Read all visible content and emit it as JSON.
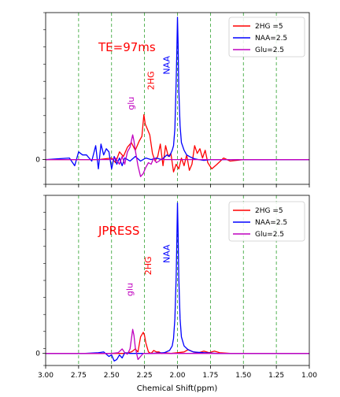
{
  "chart_data": [
    {
      "type": "line",
      "annotation": "TE=97ms",
      "annotation_color": "#ff0000",
      "xlim": [
        3.0,
        1.0
      ],
      "x_reversed": true,
      "ylim": [
        -1.6,
        9.5
      ],
      "yticks": [
        {
          "value": 0,
          "label": "0"
        }
      ],
      "show_xtick_labels": false,
      "vlines": [
        2.75,
        2.5,
        2.25,
        2.0,
        1.75,
        1.5,
        1.25
      ],
      "vline_color": "#2ca02c",
      "legend": {
        "position": "upper right"
      },
      "peak_labels": [
        {
          "text": "glu",
          "x": 2.33,
          "y": 3.2,
          "color": "#bf00bf"
        },
        {
          "text": "2HG",
          "x": 2.18,
          "y": 4.5,
          "color": "#ff0000"
        },
        {
          "text": "NAA",
          "x": 2.06,
          "y": 5.5,
          "color": "#0000ff"
        }
      ],
      "series": [
        {
          "name": "2HG =5",
          "color": "#ff0000",
          "x": [
            3.0,
            2.6,
            2.5,
            2.47,
            2.44,
            2.41,
            2.38,
            2.35,
            2.32,
            2.29,
            2.27,
            2.255,
            2.245,
            2.23,
            2.21,
            2.19,
            2.17,
            2.15,
            2.13,
            2.11,
            2.09,
            2.07,
            2.05,
            2.03,
            2.01,
            1.99,
            1.97,
            1.95,
            1.93,
            1.91,
            1.89,
            1.87,
            1.85,
            1.83,
            1.81,
            1.79,
            1.77,
            1.74,
            1.7,
            1.65,
            1.6,
            1.5,
            1.0
          ],
          "y": [
            0,
            0,
            0.1,
            -0.2,
            0.5,
            0.2,
            0.8,
            1.1,
            0.6,
            1.2,
            1.5,
            2.9,
            2.3,
            2.0,
            1.6,
            0.4,
            -0.1,
            0.2,
            1.0,
            -0.4,
            0.9,
            0.2,
            0.4,
            -0.8,
            -0.3,
            -0.6,
            0.1,
            -0.4,
            0.3,
            -0.7,
            -0.3,
            0.9,
            0.4,
            0.7,
            0.1,
            0.6,
            -0.2,
            -0.6,
            -0.3,
            0.1,
            -0.1,
            0,
            0
          ]
        },
        {
          "name": "NAA=2.5",
          "color": "#0000ff",
          "x": [
            3.0,
            2.82,
            2.78,
            2.75,
            2.72,
            2.69,
            2.65,
            2.62,
            2.6,
            2.58,
            2.56,
            2.54,
            2.52,
            2.5,
            2.48,
            2.46,
            2.44,
            2.42,
            2.4,
            2.36,
            2.32,
            2.28,
            2.24,
            2.2,
            2.16,
            2.12,
            2.08,
            2.06,
            2.04,
            2.03,
            2.02,
            2.01,
            2.005,
            2.0,
            1.995,
            1.99,
            1.98,
            1.97,
            1.95,
            1.93,
            1.9,
            1.87,
            1.84,
            1.8,
            1.75,
            1.7,
            1.6,
            1.5,
            1.0
          ],
          "y": [
            0,
            0.1,
            -0.4,
            0.5,
            0.3,
            0.3,
            -0.1,
            0.9,
            -0.6,
            1.0,
            0.3,
            0.7,
            0.5,
            -0.6,
            0.2,
            -0.3,
            0.1,
            -0.4,
            0.1,
            -0.1,
            0.2,
            -0.1,
            0.1,
            0,
            0.1,
            0,
            0.3,
            0.2,
            0.6,
            0.9,
            2.0,
            5.0,
            7.0,
            9.2,
            7.5,
            4.5,
            2.2,
            1.1,
            0.6,
            0.3,
            0.15,
            0.05,
            0,
            -0.05,
            0,
            0,
            0,
            0,
            0
          ]
        },
        {
          "name": "Glu=2.5",
          "color": "#bf00bf",
          "x": [
            3.0,
            2.6,
            2.5,
            2.47,
            2.44,
            2.42,
            2.4,
            2.38,
            2.36,
            2.34,
            2.33,
            2.32,
            2.3,
            2.28,
            2.26,
            2.24,
            2.22,
            2.2,
            2.18,
            2.16,
            2.14,
            2.12,
            2.1,
            2.05,
            2.0,
            1.9,
            1.5,
            1.0
          ],
          "y": [
            0,
            0,
            0,
            0.1,
            -0.3,
            0.2,
            -0.3,
            0.5,
            0.8,
            1.6,
            1.2,
            0.6,
            -0.4,
            -1.1,
            -0.9,
            -0.5,
            -0.2,
            -0.3,
            0.1,
            -0.2,
            -0.1,
            0.05,
            0,
            0,
            0,
            0,
            0,
            0
          ]
        }
      ]
    },
    {
      "type": "line",
      "annotation": "JPRESS",
      "annotation_color": "#ff0000",
      "xlim": [
        3.0,
        1.0
      ],
      "x_reversed": true,
      "ylim": [
        -0.8,
        10.5
      ],
      "yticks": [
        {
          "value": 0,
          "label": "0"
        }
      ],
      "xticks": [
        {
          "value": 3.0,
          "label": "3.00"
        },
        {
          "value": 2.75,
          "label": "2.75"
        },
        {
          "value": 2.5,
          "label": "2.50"
        },
        {
          "value": 2.25,
          "label": "2.25"
        },
        {
          "value": 2.0,
          "label": "2.00"
        },
        {
          "value": 1.75,
          "label": "1.75"
        },
        {
          "value": 1.5,
          "label": "1.50"
        },
        {
          "value": 1.25,
          "label": "1.25"
        },
        {
          "value": 1.0,
          "label": "1.00"
        }
      ],
      "xlabel": "Chemical Shift(ppm)",
      "vlines": [
        2.75,
        2.5,
        2.25,
        2.0,
        1.75,
        1.5,
        1.25
      ],
      "vline_color": "#2ca02c",
      "legend": {
        "position": "upper right"
      },
      "peak_labels": [
        {
          "text": "glu",
          "x": 2.34,
          "y": 3.8,
          "color": "#bf00bf"
        },
        {
          "text": "2HG",
          "x": 2.2,
          "y": 5.2,
          "color": "#ff0000"
        },
        {
          "text": "NAA",
          "x": 2.06,
          "y": 6.0,
          "color": "#0000ff"
        }
      ],
      "series": [
        {
          "name": "2HG =5",
          "color": "#ff0000",
          "x": [
            3.0,
            2.4,
            2.35,
            2.32,
            2.3,
            2.28,
            2.26,
            2.25,
            2.24,
            2.22,
            2.2,
            2.18,
            2.16,
            2.14,
            2.12,
            2.1,
            2.05,
            2.0,
            1.95,
            1.92,
            1.88,
            1.84,
            1.8,
            1.76,
            1.72,
            1.68,
            1.6,
            1.0
          ],
          "y": [
            0,
            0,
            0.1,
            0.3,
            0.1,
            1.1,
            1.4,
            1.2,
            0.7,
            0.1,
            0,
            0.2,
            0.1,
            0.1,
            0,
            0.05,
            0,
            0.05,
            0.1,
            0.25,
            0.1,
            0.05,
            0.15,
            0.05,
            0.15,
            0.05,
            0,
            0
          ]
        },
        {
          "name": "NAA=2.5",
          "color": "#0000ff",
          "x": [
            3.0,
            2.7,
            2.6,
            2.56,
            2.52,
            2.5,
            2.48,
            2.46,
            2.44,
            2.42,
            2.4,
            2.36,
            2.3,
            2.2,
            2.1,
            2.06,
            2.04,
            2.03,
            2.02,
            2.01,
            2.005,
            2.0,
            1.995,
            1.99,
            1.98,
            1.97,
            1.95,
            1.92,
            1.88,
            1.8,
            1.7,
            1.5,
            1.0
          ],
          "y": [
            0,
            0,
            0.05,
            0.1,
            -0.2,
            -0.1,
            -0.5,
            -0.4,
            -0.1,
            -0.3,
            0.05,
            0,
            0,
            0,
            0.05,
            0.2,
            0.5,
            1.0,
            2.3,
            5.0,
            7.5,
            10.0,
            8.0,
            5.0,
            2.3,
            1.1,
            0.5,
            0.25,
            0.1,
            0.05,
            0,
            0,
            0
          ]
        },
        {
          "name": "Glu=2.5",
          "color": "#bf00bf",
          "x": [
            3.0,
            2.5,
            2.45,
            2.42,
            2.4,
            2.38,
            2.36,
            2.34,
            2.33,
            2.32,
            2.3,
            2.28,
            2.26,
            2.2,
            1.0
          ],
          "y": [
            0,
            0,
            0.05,
            0.3,
            0.05,
            -0.05,
            0.3,
            1.6,
            1.2,
            0.4,
            -0.4,
            -0.2,
            0,
            0,
            0
          ]
        }
      ]
    }
  ]
}
